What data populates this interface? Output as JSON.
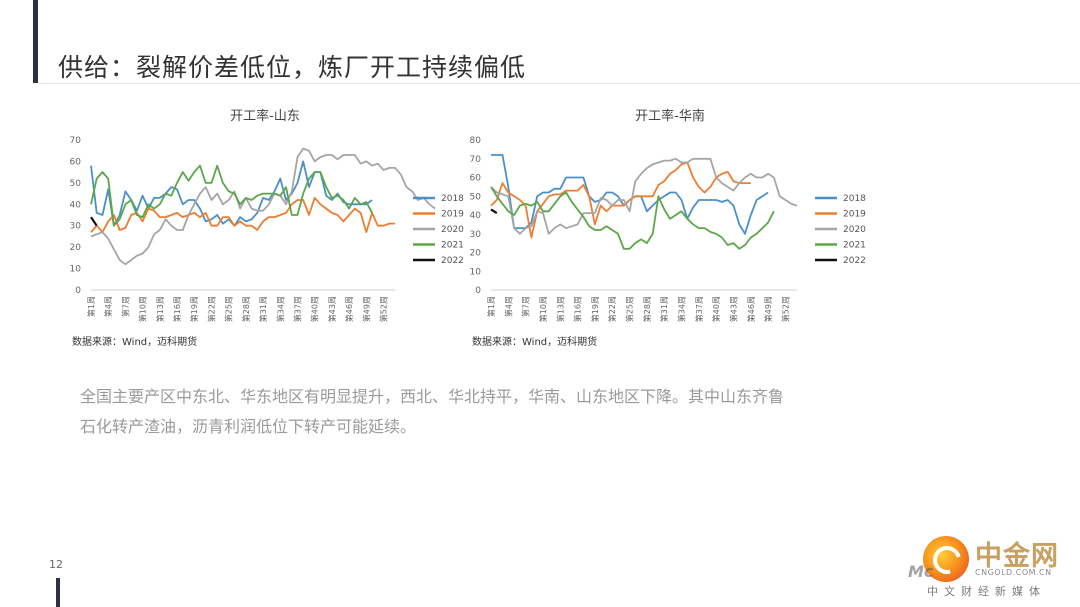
{
  "page": {
    "title": "供给：裂解价差低位，炼厂开工持续偏低",
    "body_lines": [
      "全国主要产区中东北、华东地区有明显提升，西北、华北持平，华南、山东地区下降。其中山东齐鲁",
      "石化转产渣油，沥青利润低位下转产可能延续。"
    ],
    "page_number": "12"
  },
  "watermark": {
    "name": "中金网",
    "url": "CNGOLD.COM.CN",
    "sub": "中文财经新媒体",
    "brand": "Mc"
  },
  "chart_data": [
    {
      "type": "line",
      "title": "开工率-山东",
      "source": "数据来源：Wind，迈科期货",
      "ylim": [
        0,
        70
      ],
      "yticks": [
        0,
        10,
        20,
        30,
        40,
        50,
        60,
        70
      ],
      "xtick_labels": [
        "第1周",
        "第4周",
        "第7周",
        "第10周",
        "第13周",
        "第16周",
        "第19周",
        "第22周",
        "第25周",
        "第28周",
        "第31周",
        "第34周",
        "第37周",
        "第40周",
        "第43周",
        "第46周",
        "第49周",
        "第52周"
      ],
      "grid": false,
      "legend_position": "right",
      "series": [
        {
          "name": "2018",
          "color": "#4a90c8",
          "values": [
            58,
            36,
            35,
            47,
            30,
            35,
            46,
            42,
            37,
            44,
            38,
            43,
            43,
            45,
            48,
            47,
            40,
            42,
            42,
            38,
            32,
            33,
            35,
            31,
            33,
            30,
            34,
            32,
            33,
            36,
            43,
            42,
            46,
            52,
            42,
            45,
            50,
            60,
            48,
            55,
            55,
            44,
            42,
            45,
            41,
            40,
            40,
            40,
            40,
            42
          ]
        },
        {
          "name": "2019",
          "color": "#ed7d31",
          "values": [
            27,
            30,
            27,
            32,
            35,
            28,
            29,
            35,
            36,
            32,
            38,
            37,
            34,
            34,
            35,
            36,
            34,
            35,
            36,
            34,
            36,
            30,
            30,
            34,
            34,
            30,
            32,
            30,
            30,
            28,
            32,
            34,
            34,
            35,
            36,
            40,
            42,
            42,
            35,
            43,
            40,
            38,
            36,
            35,
            32,
            35,
            38,
            36,
            27,
            36,
            30,
            30,
            31,
            31
          ]
        },
        {
          "name": "2020",
          "color": "#a5a5a5",
          "values": [
            25,
            26,
            27,
            24,
            19,
            14,
            12,
            14,
            16,
            17,
            20,
            26,
            28,
            33,
            30,
            28,
            28,
            35,
            40,
            45,
            48,
            42,
            45,
            40,
            42,
            46,
            38,
            43,
            38,
            37,
            37,
            40,
            45,
            44,
            40,
            46,
            62,
            66,
            65,
            60,
            62,
            63,
            63,
            61,
            63,
            63,
            63,
            59,
            60,
            58,
            59,
            56,
            57,
            57,
            54,
            48,
            46,
            42,
            43,
            40,
            38
          ]
        },
        {
          "name": "2021",
          "color": "#5ba748",
          "values": [
            40,
            52,
            55,
            52,
            30,
            33,
            40,
            42,
            35,
            34,
            40,
            38,
            40,
            45,
            44,
            50,
            55,
            51,
            55,
            58,
            50,
            50,
            58,
            50,
            46,
            45,
            40,
            43,
            42,
            44,
            45,
            45,
            45,
            44,
            48,
            35,
            35,
            45,
            52,
            55,
            55,
            48,
            43,
            44,
            42,
            38,
            43,
            40,
            41,
            36
          ]
        },
        {
          "name": "2022",
          "color": "#111111",
          "values": [
            34,
            30
          ]
        }
      ]
    },
    {
      "type": "line",
      "title": "开工率-华南",
      "source": "数据来源：Wind，迈科期货",
      "ylim": [
        0,
        80
      ],
      "yticks": [
        0,
        10,
        20,
        30,
        40,
        50,
        60,
        70,
        80
      ],
      "xtick_labels": [
        "第1周",
        "第4周",
        "第7周",
        "第10周",
        "第13周",
        "第16周",
        "第19周",
        "第22周",
        "第25周",
        "第28周",
        "第31周",
        "第34周",
        "第37周",
        "第40周",
        "第43周",
        "第46周",
        "第49周",
        "第52周"
      ],
      "grid": false,
      "legend_position": "right",
      "series": [
        {
          "name": "2018",
          "color": "#4a90c8",
          "values": [
            72,
            72,
            72,
            55,
            33,
            33,
            33,
            36,
            50,
            52,
            52,
            54,
            54,
            60,
            60,
            60,
            60,
            50,
            47,
            48,
            52,
            52,
            50,
            45,
            48,
            50,
            50,
            42,
            45,
            48,
            50,
            52,
            52,
            48,
            38,
            44,
            48,
            48,
            48,
            48,
            47,
            48,
            45,
            35,
            30,
            40,
            48,
            50,
            52
          ]
        },
        {
          "name": "2019",
          "color": "#ed7d31",
          "values": [
            45,
            48,
            57,
            52,
            50,
            48,
            45,
            28,
            42,
            46,
            50,
            51,
            51,
            53,
            53,
            53,
            56,
            50,
            35,
            45,
            42,
            45,
            45,
            45,
            48,
            50,
            50,
            50,
            50,
            56,
            58,
            62,
            64,
            67,
            68,
            60,
            55,
            52,
            55,
            60,
            62,
            63,
            58,
            57,
            57,
            57
          ]
        },
        {
          "name": "2020",
          "color": "#a5a5a5",
          "values": [
            55,
            52,
            51,
            50,
            33,
            30,
            33,
            34,
            42,
            41,
            30,
            33,
            35,
            33,
            34,
            35,
            41,
            41,
            41,
            49,
            48,
            45,
            48,
            48,
            42,
            58,
            62,
            65,
            67,
            68,
            69,
            69,
            70,
            68,
            68,
            70,
            70,
            70,
            70,
            60,
            57,
            55,
            53,
            57,
            60,
            62,
            60,
            60,
            62,
            60,
            50,
            48,
            46,
            45
          ]
        },
        {
          "name": "2021",
          "color": "#5ba748",
          "values": [
            55,
            50,
            46,
            42,
            40,
            45,
            46,
            45,
            47,
            42,
            42,
            46,
            50,
            52,
            47,
            43,
            39,
            34,
            32,
            32,
            34,
            32,
            30,
            22,
            22,
            25,
            27,
            25,
            30,
            50,
            43,
            38,
            40,
            42,
            38,
            35,
            33,
            33,
            31,
            30,
            28,
            24,
            25,
            22,
            24,
            28,
            30,
            33,
            36,
            42
          ]
        },
        {
          "name": "2022",
          "color": "#111111",
          "values": [
            43,
            41
          ]
        }
      ]
    }
  ]
}
